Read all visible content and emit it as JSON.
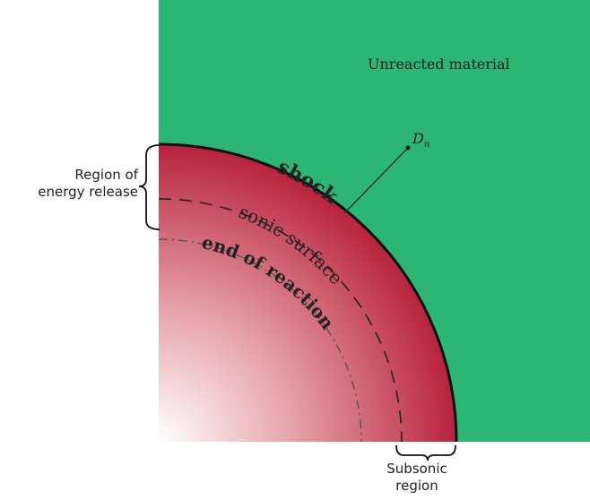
{
  "labels": {
    "unreacted": "Unreacted material",
    "shock": "shock",
    "detonation_velocity": "D",
    "detonation_velocity_sub": "n",
    "sonic_surface": "sonic surface",
    "end_of_reaction": "end of reaction",
    "region_line1": "Region of",
    "region_line2": "energy release",
    "subsonic_line1": "Subsonic",
    "subsonic_line2": "region"
  },
  "colors": {
    "green": "#2db673",
    "red_dark": "#b9243e",
    "red_light": "#ffffff",
    "line": "#111111"
  }
}
